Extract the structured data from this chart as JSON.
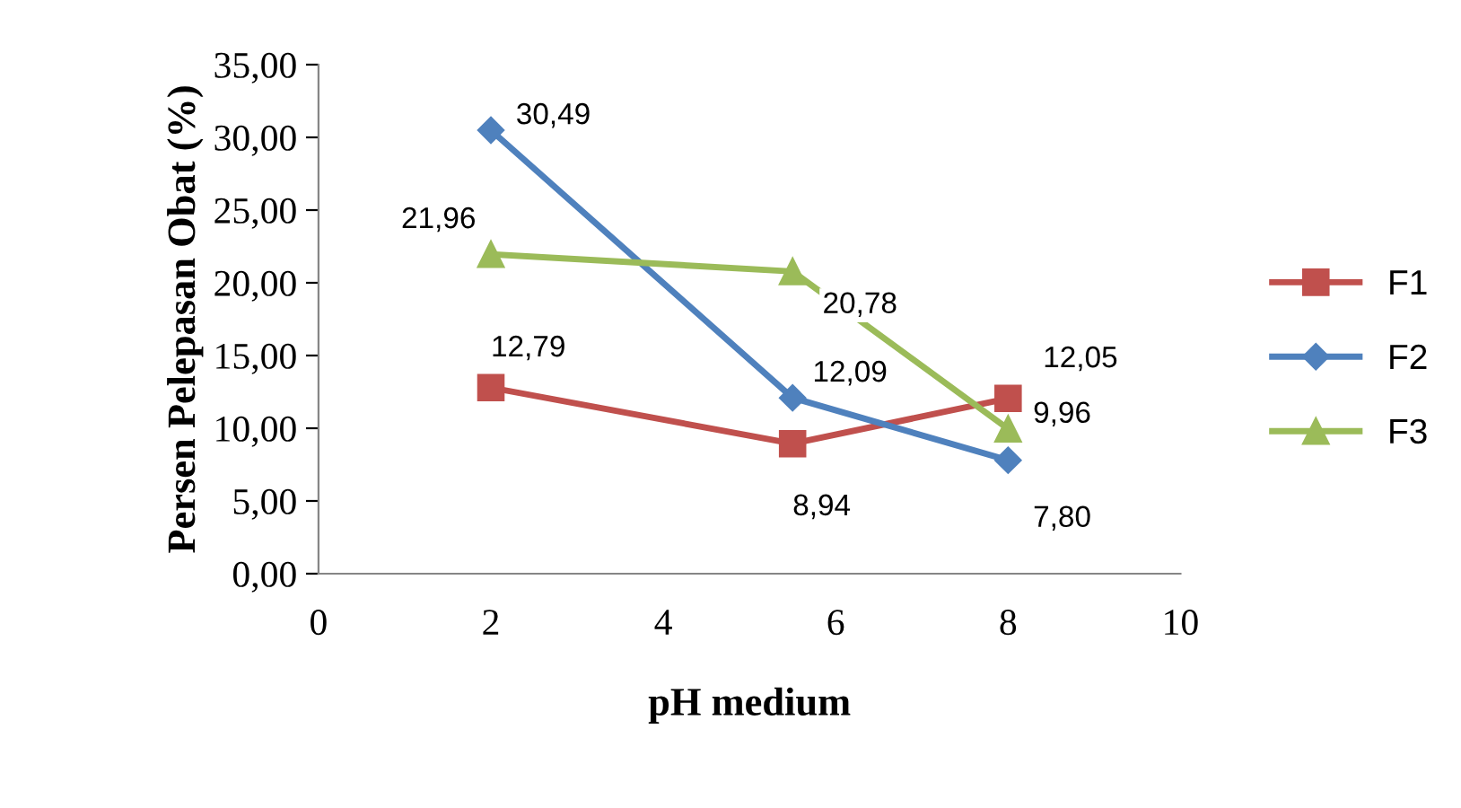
{
  "chart_data": {
    "type": "line",
    "xlabel": "pH medium",
    "ylabel": "Persen Pelepasan Obat (%)",
    "xlim": [
      0,
      10
    ],
    "xticks": [
      0,
      2,
      4,
      6,
      8,
      10
    ],
    "ylim": [
      0,
      35
    ],
    "yticks": [
      {
        "value": 0,
        "label": "0,00"
      },
      {
        "value": 5,
        "label": "5,00"
      },
      {
        "value": 10,
        "label": "10,00"
      },
      {
        "value": 15,
        "label": "15,00"
      },
      {
        "value": 20,
        "label": "20,00"
      },
      {
        "value": 25,
        "label": "25,00"
      },
      {
        "value": 30,
        "label": "30,00"
      },
      {
        "value": 35,
        "label": "35,00"
      }
    ],
    "x": [
      2,
      5.5,
      8
    ],
    "series": [
      {
        "name": "F1",
        "color": "#c0504d",
        "marker": "square",
        "values": [
          12.79,
          8.94,
          12.05
        ],
        "value_labels": [
          "12,79",
          "8,94",
          "12,05"
        ]
      },
      {
        "name": "F2",
        "color": "#4f81bd",
        "marker": "diamond",
        "values": [
          30.49,
          12.09,
          7.8
        ],
        "value_labels": [
          "30,49",
          "12,09",
          "7,80"
        ]
      },
      {
        "name": "F3",
        "color": "#9bbb59",
        "marker": "triangle",
        "values": [
          21.96,
          20.78,
          9.96
        ],
        "value_labels": [
          "21,96",
          "20,78",
          "9,96"
        ]
      }
    ],
    "legend": "right",
    "grid": false,
    "line_style": "solid"
  }
}
